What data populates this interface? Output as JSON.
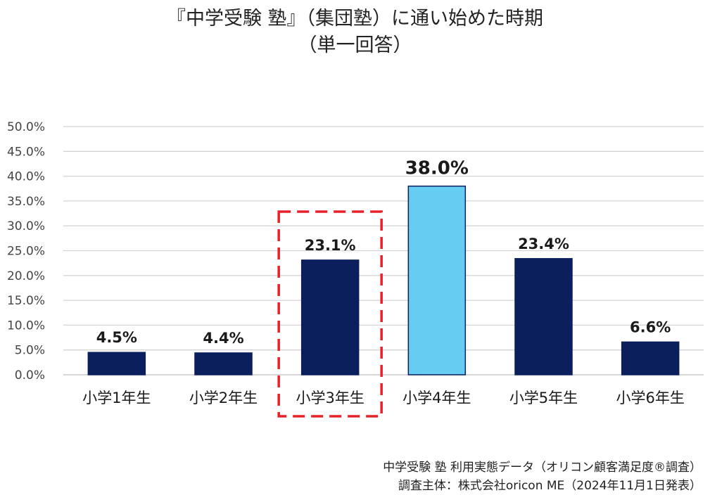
{
  "chart_data": {
    "type": "bar",
    "title_line1": "『中学受験 塾』（集団塾）に通い始めた時期",
    "title_line2": "（単一回答）",
    "categories": [
      "小学1年生",
      "小学2年生",
      "小学3年生",
      "小学4年生",
      "小学5年生",
      "小学6年生"
    ],
    "values": [
      4.5,
      4.4,
      23.1,
      38.0,
      23.4,
      6.6
    ],
    "data_labels": [
      "4.5%",
      "4.4%",
      "23.1%",
      "38.0%",
      "23.4%",
      "6.6%"
    ],
    "y_ticks": [
      "0.0%",
      "5.0%",
      "10.0%",
      "15.0%",
      "20.0%",
      "25.0%",
      "30.0%",
      "35.0%",
      "40.0%",
      "45.0%",
      "50.0%"
    ],
    "ylim": [
      0,
      50
    ],
    "grid": true,
    "highlight_index": 3,
    "boxed_index": 2,
    "colors": {
      "bar": "#0a1f5c",
      "highlight": "#66ccf2",
      "box": "#e8202a",
      "grid": "#d4d4d4"
    }
  },
  "footer": {
    "line1": "中学受験 塾 利用実態データ（オリコン顧客満足度®調査）",
    "line2": "調査主体：株式会社oricon ME（2024年11月1日発表）"
  }
}
